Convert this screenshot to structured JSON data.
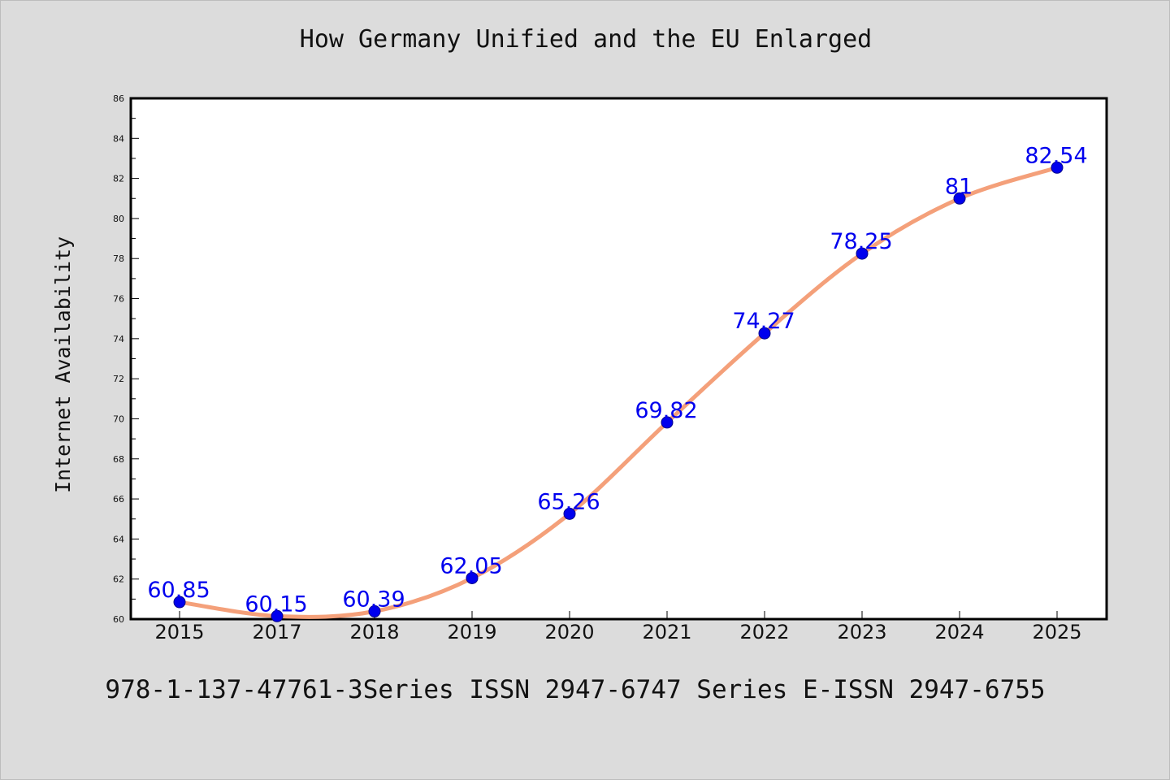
{
  "chart_data": {
    "type": "line",
    "title": "How Germany Unified and the EU Enlarged",
    "xlabel": "",
    "ylabel": "Internet Availability",
    "categories": [
      "2015",
      "2017",
      "2018",
      "2019",
      "2020",
      "2021",
      "2022",
      "2023",
      "2024",
      "2025"
    ],
    "series": [
      {
        "values": [
          60.85,
          60.15,
          60.39,
          62.05,
          65.26,
          69.82,
          74.27,
          78.25,
          81,
          82.54
        ]
      }
    ],
    "data_labels": [
      "60.85",
      "60.15",
      "60.39",
      "62.05",
      "65.26",
      "69.82",
      "74.27",
      "78.25",
      "81",
      "82.54"
    ],
    "ylim": [
      60,
      86
    ],
    "yticks": [
      "60",
      "62",
      "64",
      "66",
      "68",
      "70",
      "72",
      "74",
      "76",
      "78",
      "80",
      "82",
      "84",
      "86"
    ],
    "grid": false,
    "line_color": "#f4a07a",
    "marker_color": "#0000ee",
    "label_color": "#0000ee"
  },
  "footer": {
    "text": "978-1-137-47761-3Series ISSN 2947-6747 Series E-ISSN 2947-6755"
  }
}
